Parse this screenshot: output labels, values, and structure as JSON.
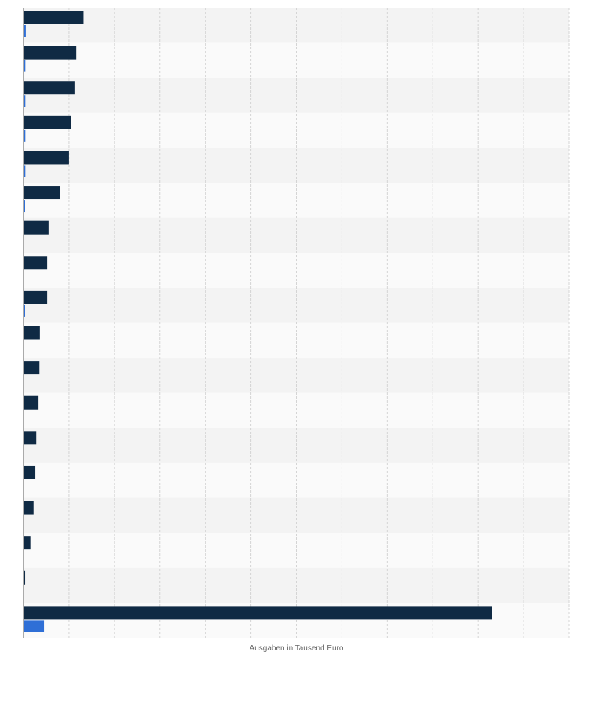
{
  "chart_data": {
    "type": "bar",
    "orientation": "horizontal",
    "title": "",
    "xlabel": "Ausgaben in Tausend Euro",
    "ylabel": "",
    "grid": true,
    "legend": "none",
    "xlim": [
      0,
      12000
    ],
    "categories": [
      "",
      "",
      "",
      "",
      "",
      "",
      "",
      "",
      "",
      "",
      "",
      "",
      "",
      "",
      "",
      "",
      "",
      ""
    ],
    "series": [
      {
        "color": "#0f2a44",
        "values": [
          1320,
          1160,
          1120,
          1040,
          1000,
          810,
          550,
          520,
          520,
          360,
          350,
          330,
          280,
          260,
          220,
          150,
          35,
          10300
        ]
      },
      {
        "color": "#2f6fd6",
        "values": [
          50,
          40,
          40,
          40,
          40,
          30,
          0,
          0,
          30,
          0,
          0,
          0,
          0,
          0,
          0,
          0,
          0,
          450
        ]
      }
    ]
  }
}
